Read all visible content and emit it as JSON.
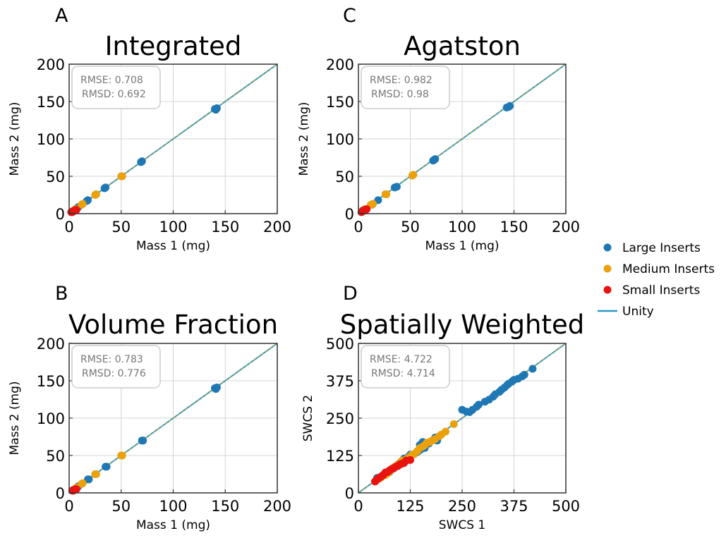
{
  "colors": {
    "large": "#1f77b4",
    "medium": "#eaa10c",
    "small": "#e8120f",
    "unity": "#2a9bc9",
    "unity_dash": "#eaa10c",
    "grid": "#d4d4d4",
    "frame": "#333333",
    "stats_border": "#cccccc",
    "stats_text": "#777777"
  },
  "legend": {
    "placement": "right",
    "items": [
      {
        "label": "Large Inserts",
        "kind": "marker",
        "color_key": "large"
      },
      {
        "label": "Medium Inserts",
        "kind": "marker",
        "color_key": "medium"
      },
      {
        "label": "Small Inserts",
        "kind": "marker",
        "color_key": "small"
      },
      {
        "label": "Unity",
        "kind": "line",
        "color_key": "unity"
      }
    ]
  },
  "chart_data": [
    {
      "letter": "A",
      "type": "scatter",
      "title": "Integrated",
      "xlabel": "Mass 1 (mg)",
      "ylabel": "Mass 2 (mg)",
      "xlim": [
        0,
        200
      ],
      "ylim": [
        0,
        200
      ],
      "xticks": [
        0,
        50,
        100,
        150,
        200
      ],
      "yticks": [
        0,
        50,
        100,
        150,
        200
      ],
      "grid": true,
      "stats": {
        "rmse": "RMSE: 0.708",
        "rmsd": "RMSD: 0.692"
      },
      "unity": [
        [
          0,
          0
        ],
        [
          200,
          200
        ]
      ],
      "series": [
        {
          "name": "Large Inserts",
          "color_key": "large",
          "x": [
            140,
            142,
            141,
            70,
            69,
            35,
            34,
            18,
            17,
            9,
            8,
            4,
            3
          ],
          "y": [
            140,
            141,
            139,
            70,
            69,
            35,
            34,
            18,
            17,
            9,
            8,
            4,
            3
          ]
        },
        {
          "name": "Medium Inserts",
          "color_key": "medium",
          "x": [
            50,
            51,
            25,
            26,
            13,
            12,
            6,
            5
          ],
          "y": [
            50,
            50,
            25,
            26,
            13,
            12,
            6,
            5
          ]
        },
        {
          "name": "Small Inserts",
          "color_key": "small",
          "x": [
            5,
            6,
            4,
            3,
            2,
            7
          ],
          "y": [
            4,
            5,
            3,
            2,
            2,
            5
          ]
        }
      ]
    },
    {
      "letter": "C",
      "type": "scatter",
      "title": "Agatston",
      "xlabel": "Mass 1 (mg)",
      "ylabel": "Mass 2 (mg)",
      "xlim": [
        0,
        200
      ],
      "ylim": [
        0,
        200
      ],
      "xticks": [
        0,
        50,
        100,
        150,
        200
      ],
      "yticks": [
        0,
        50,
        100,
        150,
        200
      ],
      "grid": true,
      "stats": {
        "rmse": "RMSE: 0.982",
        "rmsd": "RMSD: 0.98"
      },
      "unity": [
        [
          0,
          0
        ],
        [
          200,
          200
        ]
      ],
      "series": [
        {
          "name": "Large Inserts",
          "color_key": "large",
          "x": [
            143,
            146,
            145,
            72,
            74,
            73,
            37,
            35,
            19,
            14,
            13,
            5,
            4
          ],
          "y": [
            142,
            144,
            143,
            71,
            73,
            72,
            36,
            35,
            18,
            13,
            12,
            4,
            4
          ]
        },
        {
          "name": "Medium Inserts",
          "color_key": "medium",
          "x": [
            52,
            53,
            26,
            27,
            14,
            12,
            6
          ],
          "y": [
            51,
            52,
            26,
            26,
            13,
            12,
            6
          ]
        },
        {
          "name": "Small Inserts",
          "color_key": "small",
          "x": [
            5,
            6,
            4,
            7,
            3,
            8
          ],
          "y": [
            4,
            5,
            3,
            5,
            2,
            6
          ]
        }
      ]
    },
    {
      "letter": "B",
      "type": "scatter",
      "title": "Volume Fraction",
      "xlabel": "Mass 1 (mg)",
      "ylabel": "Mass 2 (mg)",
      "xlim": [
        0,
        200
      ],
      "ylim": [
        0,
        200
      ],
      "xticks": [
        0,
        50,
        100,
        150,
        200
      ],
      "yticks": [
        0,
        50,
        100,
        150,
        200
      ],
      "grid": true,
      "stats": {
        "rmse": "RMSE: 0.783",
        "rmsd": "RMSD: 0.776"
      },
      "unity": [
        [
          0,
          0
        ],
        [
          200,
          200
        ]
      ],
      "series": [
        {
          "name": "Large Inserts",
          "color_key": "large",
          "x": [
            140,
            142,
            141,
            70,
            71,
            35,
            36,
            18,
            19,
            9,
            8,
            4
          ],
          "y": [
            140,
            141,
            139,
            70,
            70,
            35,
            35,
            18,
            18,
            9,
            8,
            4
          ]
        },
        {
          "name": "Medium Inserts",
          "color_key": "medium",
          "x": [
            50,
            51,
            25,
            26,
            13,
            12,
            7
          ],
          "y": [
            50,
            50,
            25,
            25,
            13,
            12,
            7
          ]
        },
        {
          "name": "Small Inserts",
          "color_key": "small",
          "x": [
            5,
            6,
            4,
            3,
            7
          ],
          "y": [
            4,
            5,
            3,
            3,
            5
          ]
        }
      ]
    },
    {
      "letter": "D",
      "type": "scatter",
      "title": "Spatially Weighted",
      "xlabel": "SWCS 1",
      "ylabel": "SWCS 2",
      "xlim": [
        0,
        500
      ],
      "ylim": [
        0,
        500
      ],
      "xticks": [
        0,
        125,
        250,
        375,
        500
      ],
      "yticks": [
        0,
        125,
        250,
        375,
        500
      ],
      "grid": true,
      "stats": {
        "rmse": "RMSE: 4.722",
        "rmsd": "RMSD: 4.714"
      },
      "unity": [
        [
          0,
          0
        ],
        [
          500,
          500
        ]
      ],
      "series": [
        {
          "name": "Large Inserts",
          "color_key": "large",
          "x": [
            420,
            400,
            395,
            385,
            375,
            370,
            362,
            358,
            352,
            345,
            340,
            330,
            325,
            315,
            305,
            290,
            285,
            275,
            268,
            260,
            250,
            190,
            185,
            170,
            160,
            155,
            150,
            148,
            145,
            140,
            135,
            125,
            120,
            110,
            100,
            95,
            85,
            75,
            60,
            50,
            45
          ],
          "y": [
            415,
            395,
            390,
            382,
            378,
            372,
            365,
            360,
            352,
            345,
            338,
            330,
            322,
            312,
            305,
            295,
            288,
            278,
            270,
            272,
            278,
            175,
            185,
            165,
            150,
            170,
            145,
            160,
            140,
            135,
            130,
            128,
            120,
            115,
            100,
            90,
            82,
            70,
            60,
            48,
            50
          ]
        },
        {
          "name": "Medium Inserts",
          "color_key": "medium",
          "x": [
            230,
            210,
            200,
            195,
            185,
            178,
            172,
            165,
            160,
            155,
            148,
            142,
            135,
            130,
            125,
            118,
            112,
            105,
            100,
            95,
            90,
            85,
            80,
            75,
            70,
            65,
            60,
            55,
            50
          ],
          "y": [
            230,
            205,
            195,
            190,
            180,
            175,
            170,
            168,
            160,
            155,
            150,
            140,
            130,
            128,
            122,
            115,
            110,
            108,
            98,
            95,
            88,
            85,
            78,
            72,
            65,
            60,
            58,
            52,
            48
          ]
        },
        {
          "name": "Small Inserts",
          "color_key": "small",
          "x": [
            125,
            115,
            110,
            105,
            100,
            95,
            90,
            85,
            80,
            75,
            70,
            65,
            60,
            55,
            50,
            45,
            42,
            40
          ],
          "y": [
            110,
            108,
            100,
            98,
            95,
            90,
            88,
            82,
            80,
            75,
            70,
            68,
            60,
            55,
            50,
            45,
            40,
            38
          ]
        }
      ]
    }
  ]
}
